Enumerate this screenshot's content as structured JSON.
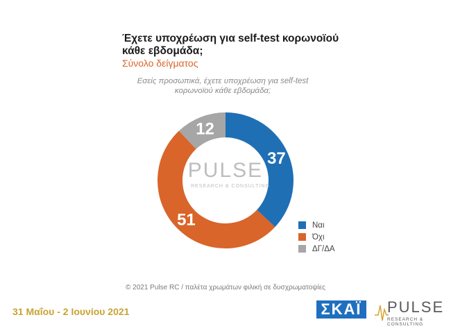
{
  "title": "Έχετε υποχρέωση για self-test κορωνοϊού κάθε εβδομάδα;",
  "subtitle": "Σύνολο δείγματος",
  "question": "Εσείς προσωπικά, έχετε υποχρέωση για self-test κορωνοϊού κάθε εβδομάδα;",
  "watermark": {
    "main": "PULSE",
    "sub": "RESEARCH & CONSULTING"
  },
  "footer_note": "© 2021 Pulse RC  /  παλέτα χρωμάτων φιλική σε δυσχρωματοψίες",
  "date": "31 Μαΐου - 2 Ιουνίου 2021",
  "logos": {
    "skai": "ΣΚΑΪ",
    "pulse": "PULSE",
    "pulse_sub": "RESEARCH & CONSULTING"
  },
  "chart_data": {
    "type": "pie",
    "donut": true,
    "categories": [
      "Ναι",
      "Όχι",
      "ΔΓ/ΔΑ"
    ],
    "values": [
      37,
      51,
      12
    ],
    "colors": [
      "#1f6fb5",
      "#d9652a",
      "#a6a6a6"
    ],
    "legend_position": "right"
  }
}
